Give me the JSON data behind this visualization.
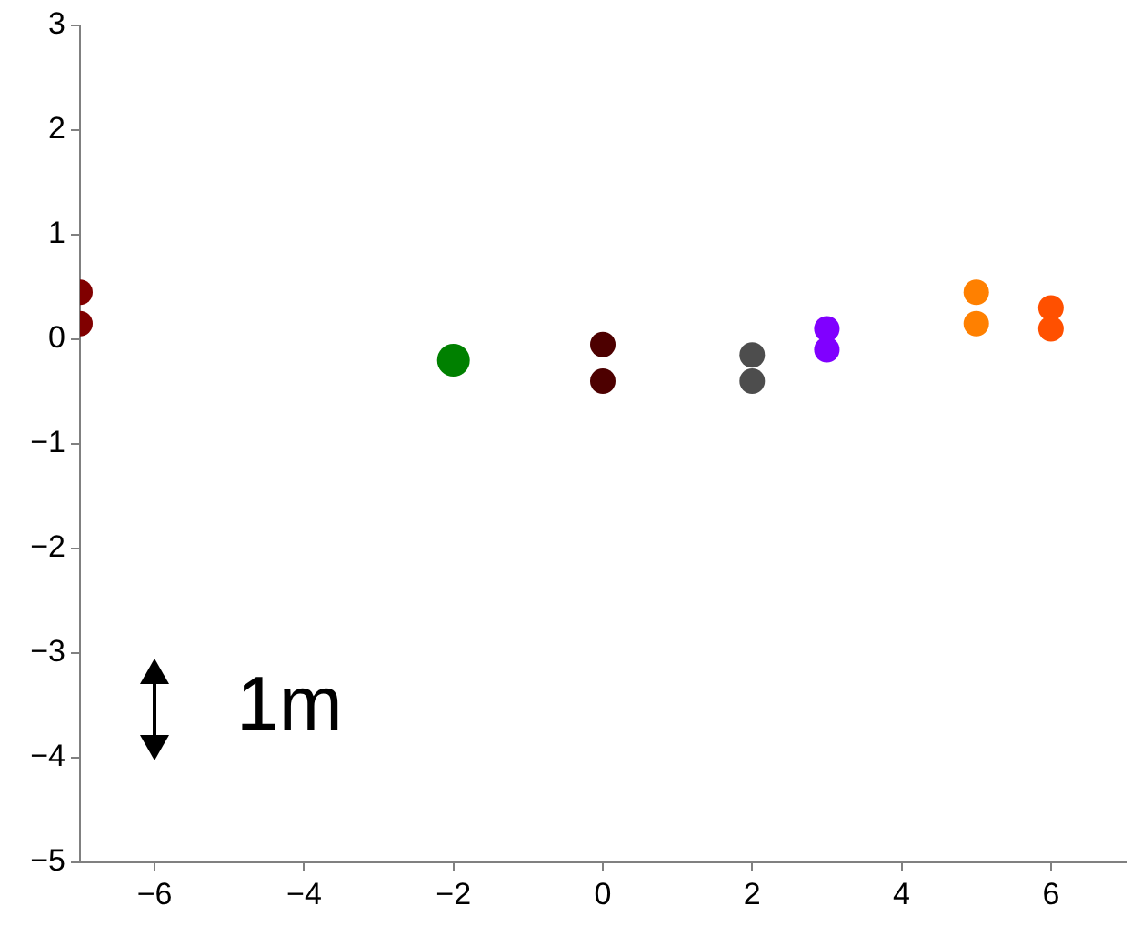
{
  "chart_data": {
    "type": "scatter",
    "marker": "circle",
    "legend": false,
    "grid": false,
    "xlim": [
      -7,
      7
    ],
    "xticks": [
      -6,
      -4,
      -2,
      0,
      2,
      4,
      6
    ],
    "ylim": [
      -5,
      3
    ],
    "yticks": [
      -5,
      -4,
      -3,
      -2,
      -1,
      0,
      1,
      2,
      3
    ],
    "annotations": [
      "1m"
    ],
    "series": [
      {
        "color": "#800000",
        "x": [
          -7,
          -7
        ],
        "values": [
          0.45,
          0.15
        ]
      },
      {
        "color": "#008000",
        "x": [
          -2
        ],
        "values": [
          -0.2
        ]
      },
      {
        "color": "#4d0000",
        "x": [
          0,
          0
        ],
        "values": [
          -0.05,
          -0.4
        ]
      },
      {
        "color": "#4d4d4d",
        "x": [
          2,
          2
        ],
        "values": [
          -0.15,
          -0.4
        ]
      },
      {
        "color": "#8000ff",
        "x": [
          3,
          3
        ],
        "values": [
          0.1,
          -0.1
        ]
      },
      {
        "color": "#ff8000",
        "x": [
          5,
          5
        ],
        "values": [
          0.45,
          0.15
        ]
      },
      {
        "color": "#ff5000",
        "x": [
          6,
          6
        ],
        "values": [
          0.3,
          0.1
        ]
      }
    ]
  }
}
